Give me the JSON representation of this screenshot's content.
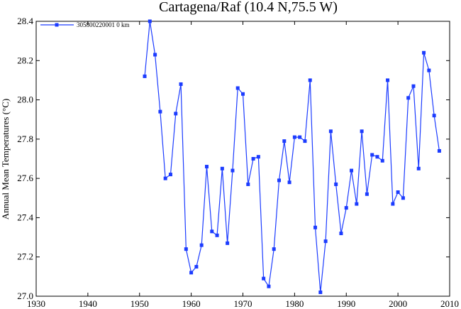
{
  "chart_data": {
    "type": "line",
    "title": "Cartagena/Raf (10.4 N,75.5 W)",
    "xlabel": "",
    "ylabel": "Annual Mean Temperatures (°C)",
    "xlim": [
      1930,
      2010
    ],
    "ylim": [
      27.0,
      28.4
    ],
    "xticks": [
      1930,
      1940,
      1950,
      1960,
      1970,
      1980,
      1990,
      2000,
      2010
    ],
    "yticks": [
      27.0,
      27.2,
      27.4,
      27.6,
      27.8,
      28.0,
      28.2,
      28.4
    ],
    "grid": false,
    "legend_position": "top-left",
    "series": [
      {
        "name": "305800220001  0 km",
        "color": "#1c3cff",
        "points": [
          [
            1951,
            28.12
          ],
          [
            1952,
            28.4
          ],
          [
            1953,
            28.23
          ],
          [
            1954,
            27.94
          ],
          [
            1955,
            27.6
          ],
          [
            1956,
            27.62
          ],
          [
            1957,
            27.93
          ],
          [
            1958,
            28.08
          ],
          [
            1959,
            27.24
          ],
          [
            1960,
            27.12
          ],
          [
            1961,
            27.15
          ],
          [
            1962,
            27.26
          ],
          [
            1963,
            27.66
          ],
          [
            1964,
            27.33
          ],
          [
            1965,
            27.31
          ],
          [
            1966,
            27.65
          ],
          [
            1967,
            27.27
          ],
          [
            1968,
            27.64
          ],
          [
            1969,
            28.06
          ],
          [
            1970,
            28.03
          ],
          [
            1971,
            27.57
          ],
          [
            1972,
            27.7
          ],
          [
            1973,
            27.71
          ],
          [
            1974,
            27.09
          ],
          [
            1975,
            27.05
          ],
          [
            1976,
            27.24
          ],
          [
            1977,
            27.59
          ],
          [
            1978,
            27.79
          ],
          [
            1979,
            27.58
          ],
          [
            1980,
            27.81
          ],
          [
            1981,
            27.81
          ],
          [
            1982,
            27.79
          ],
          [
            1983,
            28.1
          ],
          [
            1984,
            27.35
          ],
          [
            1985,
            27.02
          ],
          [
            1986,
            27.28
          ],
          [
            1987,
            27.84
          ],
          [
            1988,
            27.57
          ],
          [
            1989,
            27.32
          ],
          [
            1990,
            27.45
          ],
          [
            1991,
            27.64
          ],
          [
            1992,
            27.47
          ],
          [
            1993,
            27.84
          ],
          [
            1994,
            27.52
          ],
          [
            1995,
            27.72
          ],
          [
            1996,
            27.71
          ],
          [
            1997,
            27.69
          ],
          [
            1998,
            28.1
          ],
          [
            1999,
            27.47
          ],
          [
            2000,
            27.53
          ],
          [
            2001,
            27.5
          ],
          [
            2002,
            28.01
          ],
          [
            2003,
            28.07
          ],
          [
            2004,
            27.65
          ],
          [
            2005,
            28.24
          ],
          [
            2006,
            28.15
          ],
          [
            2007,
            27.92
          ],
          [
            2008,
            27.74
          ]
        ]
      }
    ]
  }
}
